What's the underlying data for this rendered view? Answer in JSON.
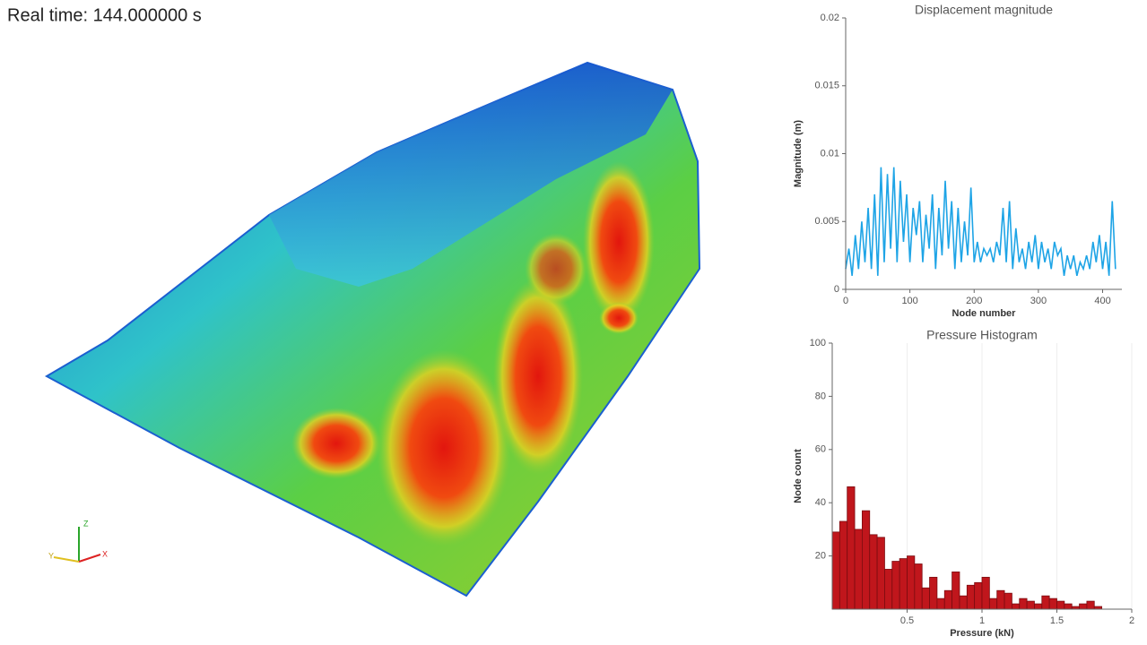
{
  "real_time_label": "Real time: 144.000000 s",
  "axes_triad": {
    "x": "X",
    "y": "Y",
    "z": "Z"
  },
  "chart_data": [
    {
      "type": "line",
      "title": "Displacement magnitude",
      "x_label": "Node number",
      "y_label": "Magnitude (m)",
      "color": "#1ea4e6",
      "x": [
        0,
        5,
        10,
        15,
        20,
        25,
        30,
        35,
        40,
        45,
        50,
        55,
        60,
        65,
        70,
        75,
        80,
        85,
        90,
        95,
        100,
        105,
        110,
        115,
        120,
        125,
        130,
        135,
        140,
        145,
        150,
        155,
        160,
        165,
        170,
        175,
        180,
        185,
        190,
        195,
        200,
        205,
        210,
        215,
        220,
        225,
        230,
        235,
        240,
        245,
        250,
        255,
        260,
        265,
        270,
        275,
        280,
        285,
        290,
        295,
        300,
        305,
        310,
        315,
        320,
        325,
        330,
        335,
        340,
        345,
        350,
        355,
        360,
        365,
        370,
        375,
        380,
        385,
        390,
        395,
        400,
        405,
        410,
        415,
        420
      ],
      "values": [
        0.0015,
        0.003,
        0.001,
        0.004,
        0.0015,
        0.005,
        0.002,
        0.006,
        0.0015,
        0.007,
        0.001,
        0.009,
        0.002,
        0.0085,
        0.003,
        0.009,
        0.002,
        0.008,
        0.0035,
        0.007,
        0.002,
        0.006,
        0.004,
        0.0065,
        0.002,
        0.0055,
        0.003,
        0.007,
        0.0015,
        0.006,
        0.0025,
        0.008,
        0.003,
        0.0065,
        0.0015,
        0.006,
        0.002,
        0.005,
        0.0025,
        0.0075,
        0.002,
        0.0035,
        0.002,
        0.003,
        0.0025,
        0.003,
        0.002,
        0.0035,
        0.0025,
        0.006,
        0.002,
        0.0065,
        0.0015,
        0.0045,
        0.002,
        0.003,
        0.0015,
        0.0035,
        0.002,
        0.004,
        0.0015,
        0.0035,
        0.002,
        0.003,
        0.0015,
        0.0035,
        0.0025,
        0.003,
        0.001,
        0.0025,
        0.0015,
        0.0025,
        0.001,
        0.002,
        0.0015,
        0.0025,
        0.0015,
        0.0035,
        0.002,
        0.004,
        0.0015,
        0.0035,
        0.001,
        0.0065,
        0.0015
      ],
      "xlim": [
        0,
        430
      ],
      "xticks": [
        0,
        100,
        200,
        300,
        400
      ],
      "ylim": [
        0,
        0.02
      ],
      "yticks": [
        0,
        0.005,
        0.01,
        0.015,
        0.02
      ],
      "grid": false
    },
    {
      "type": "histogram",
      "title": "Pressure Histogram",
      "x_label": "Pressure (kN)",
      "y_label": "Node count",
      "color": "#c0161c",
      "bins": [
        0,
        0.05,
        0.1,
        0.15,
        0.2,
        0.25,
        0.3,
        0.35,
        0.4,
        0.45,
        0.5,
        0.55,
        0.6,
        0.65,
        0.7,
        0.75,
        0.8,
        0.85,
        0.9,
        0.95,
        1,
        1.05,
        1.1,
        1.15,
        1.2,
        1.25,
        1.3,
        1.35,
        1.4,
        1.45,
        1.5,
        1.55,
        1.6,
        1.65,
        1.7,
        1.75,
        1.8
      ],
      "counts": [
        29,
        33,
        46,
        30,
        37,
        28,
        27,
        15,
        18,
        19,
        20,
        17,
        8,
        12,
        4,
        7,
        14,
        5,
        9,
        10,
        12,
        4,
        7,
        6,
        2,
        4,
        3,
        2,
        5,
        4,
        3,
        2,
        1,
        2,
        3,
        1
      ],
      "xlim": [
        0,
        2
      ],
      "xticks": [
        0.5,
        1,
        1.5,
        2
      ],
      "ylim": [
        0,
        100
      ],
      "yticks": [
        20,
        40,
        60,
        80,
        100
      ],
      "grid": true
    }
  ]
}
